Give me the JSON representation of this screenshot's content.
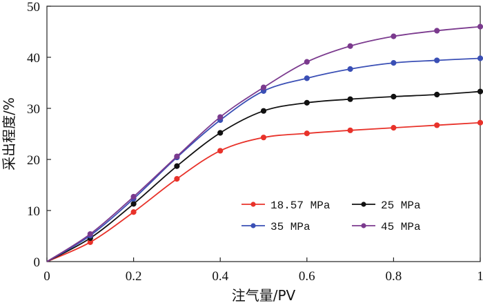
{
  "chart_data": {
    "type": "line",
    "title": "",
    "xlabel": "注气量/PV",
    "ylabel": "采出程度/%",
    "xlim": [
      0,
      1
    ],
    "ylim": [
      0,
      50
    ],
    "x_ticks": [
      0,
      0.2,
      0.4,
      0.6,
      0.8,
      1
    ],
    "x_tick_labels": [
      "0",
      "0.2",
      "0.4",
      "0.6",
      "0.8",
      "1"
    ],
    "y_ticks": [
      0,
      10,
      20,
      30,
      40,
      50
    ],
    "y_tick_labels": [
      "0",
      "10",
      "20",
      "30",
      "40",
      "50"
    ],
    "grid": false,
    "legend_position": "center-right",
    "series": [
      {
        "name": "18.57 MPa",
        "color": "#e8322a",
        "x": [
          0,
          0.1,
          0.2,
          0.3,
          0.4,
          0.5,
          0.6,
          0.7,
          0.8,
          0.9,
          1.0
        ],
        "values": [
          0,
          3.8,
          9.7,
          16.2,
          21.7,
          24.3,
          25.1,
          25.7,
          26.2,
          26.7,
          27.2
        ]
      },
      {
        "name": "25 MPa",
        "color": "#111111",
        "x": [
          0,
          0.1,
          0.2,
          0.3,
          0.4,
          0.5,
          0.6,
          0.7,
          0.8,
          0.9,
          1.0
        ],
        "values": [
          0,
          4.6,
          11.3,
          18.7,
          25.2,
          29.5,
          31.1,
          31.8,
          32.3,
          32.7,
          33.3
        ]
      },
      {
        "name": "35 MPa",
        "color": "#3a4fb5",
        "x": [
          0,
          0.1,
          0.2,
          0.3,
          0.4,
          0.5,
          0.6,
          0.7,
          0.8,
          0.9,
          1.0
        ],
        "values": [
          0,
          5.1,
          12.3,
          20.4,
          27.7,
          33.4,
          35.9,
          37.7,
          38.9,
          39.4,
          39.8
        ]
      },
      {
        "name": "45 MPa",
        "color": "#7b3a8e",
        "x": [
          0,
          0.1,
          0.2,
          0.3,
          0.4,
          0.5,
          0.6,
          0.7,
          0.8,
          0.9,
          1.0
        ],
        "values": [
          0,
          5.4,
          12.7,
          20.6,
          28.3,
          34.1,
          39.1,
          42.2,
          44.1,
          45.2,
          46.0
        ]
      }
    ]
  }
}
